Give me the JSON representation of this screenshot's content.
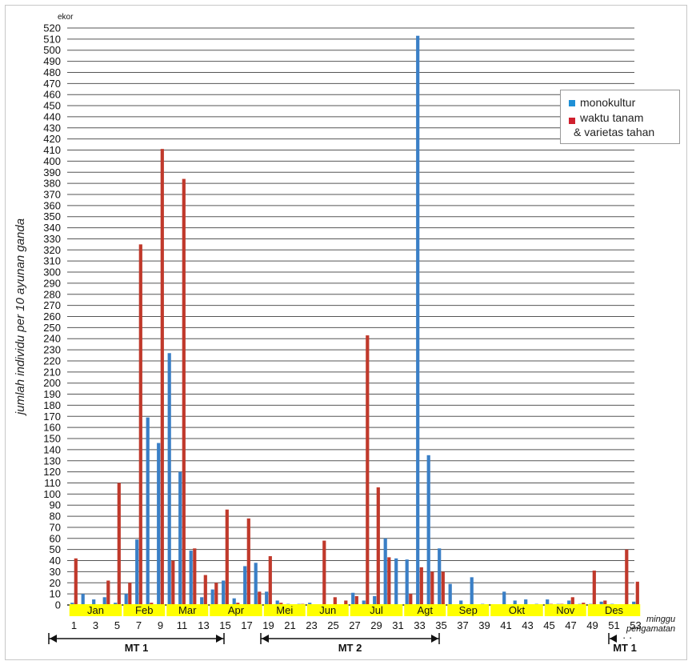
{
  "chart_data": {
    "type": "bar",
    "ylabel": "jumlah individu per 10 ayunan ganda",
    "yunit": "ekor",
    "ylim": [
      0,
      520
    ],
    "ytick_step": 10,
    "grid": true,
    "weeks": [
      1,
      2,
      3,
      4,
      5,
      6,
      7,
      8,
      9,
      10,
      11,
      12,
      13,
      14,
      15,
      16,
      17,
      18,
      19,
      20,
      21,
      22,
      23,
      24,
      25,
      26,
      27,
      28,
      29,
      30,
      31,
      32,
      33,
      34,
      35,
      36,
      37,
      38,
      39,
      40,
      41,
      42,
      43,
      44,
      45,
      46,
      47,
      48,
      49,
      50,
      51,
      52,
      53
    ],
    "xtick_labels": [
      "1",
      "3",
      "5",
      "7",
      "9",
      "11",
      "13",
      "15",
      "17",
      "19",
      "21",
      "23",
      "25",
      "27",
      "29",
      "31",
      "33",
      "35",
      "37",
      "39",
      "41",
      "43",
      "45",
      "47",
      "49",
      "51",
      "53"
    ],
    "xtick_weeks": [
      1,
      3,
      5,
      7,
      9,
      11,
      13,
      15,
      17,
      19,
      21,
      23,
      25,
      27,
      29,
      31,
      33,
      35,
      37,
      39,
      41,
      43,
      45,
      47,
      49,
      51,
      53
    ],
    "xlabel": "minggu pengamatan",
    "months": [
      {
        "label": "Jan",
        "start": 0.5,
        "end": 5.5
      },
      {
        "label": "Feb",
        "start": 5.5,
        "end": 9.5
      },
      {
        "label": "Mar",
        "start": 9.5,
        "end": 13.5
      },
      {
        "label": "Apr",
        "start": 13.5,
        "end": 18.5
      },
      {
        "label": "Mei",
        "start": 18.5,
        "end": 22.5
      },
      {
        "label": "Jun",
        "start": 22.5,
        "end": 26.5
      },
      {
        "label": "Jul",
        "start": 26.5,
        "end": 31.5
      },
      {
        "label": "Agt",
        "start": 31.5,
        "end": 35.5
      },
      {
        "label": "Sep",
        "start": 35.5,
        "end": 39.5
      },
      {
        "label": "Okt",
        "start": 39.5,
        "end": 44.5
      },
      {
        "label": "Nov",
        "start": 44.5,
        "end": 48.5
      },
      {
        "label": "Des",
        "start": 48.5,
        "end": 53.5
      }
    ],
    "series": [
      {
        "name": "monokultur",
        "color": "#3a7fc6",
        "values": [
          2,
          10,
          5,
          7,
          2,
          10,
          59,
          169,
          146,
          227,
          120,
          49,
          7,
          14,
          22,
          6,
          35,
          38,
          12,
          4,
          1,
          1,
          2,
          0,
          0,
          0,
          11,
          4,
          8,
          60,
          42,
          41,
          513,
          135,
          51,
          19,
          4,
          25,
          1,
          0,
          12,
          4,
          5,
          1,
          5,
          1,
          4,
          1,
          1,
          3,
          1,
          0,
          3
        ]
      },
      {
        "name": "waktu tanam & varietas tahan",
        "color": "#c0392b",
        "values": [
          42,
          0,
          0,
          22,
          110,
          20,
          325,
          2,
          411,
          40,
          384,
          51,
          27,
          20,
          86,
          2,
          78,
          12,
          44,
          2,
          0,
          1,
          0,
          58,
          7,
          4,
          8,
          243,
          106,
          43,
          0,
          10,
          34,
          30,
          30,
          0,
          0,
          0,
          0,
          0,
          0,
          0,
          0,
          0,
          1,
          1,
          7,
          2,
          31,
          4,
          0,
          50,
          21
        ]
      }
    ],
    "legend": {
      "position": "top-right",
      "entries": [
        "monokultur",
        "waktu tanam",
        "& varietas tahan"
      ]
    },
    "periods": [
      {
        "label": "MT 1",
        "from": 1,
        "to": 15
      },
      {
        "label": "MT 2",
        "from": 19,
        "to": 35
      },
      {
        "label": "MT 1",
        "from": 52,
        "to": 53
      }
    ]
  },
  "colors": {
    "month_band": "#ffff00",
    "grid": "#555555",
    "axis": "#000000"
  }
}
